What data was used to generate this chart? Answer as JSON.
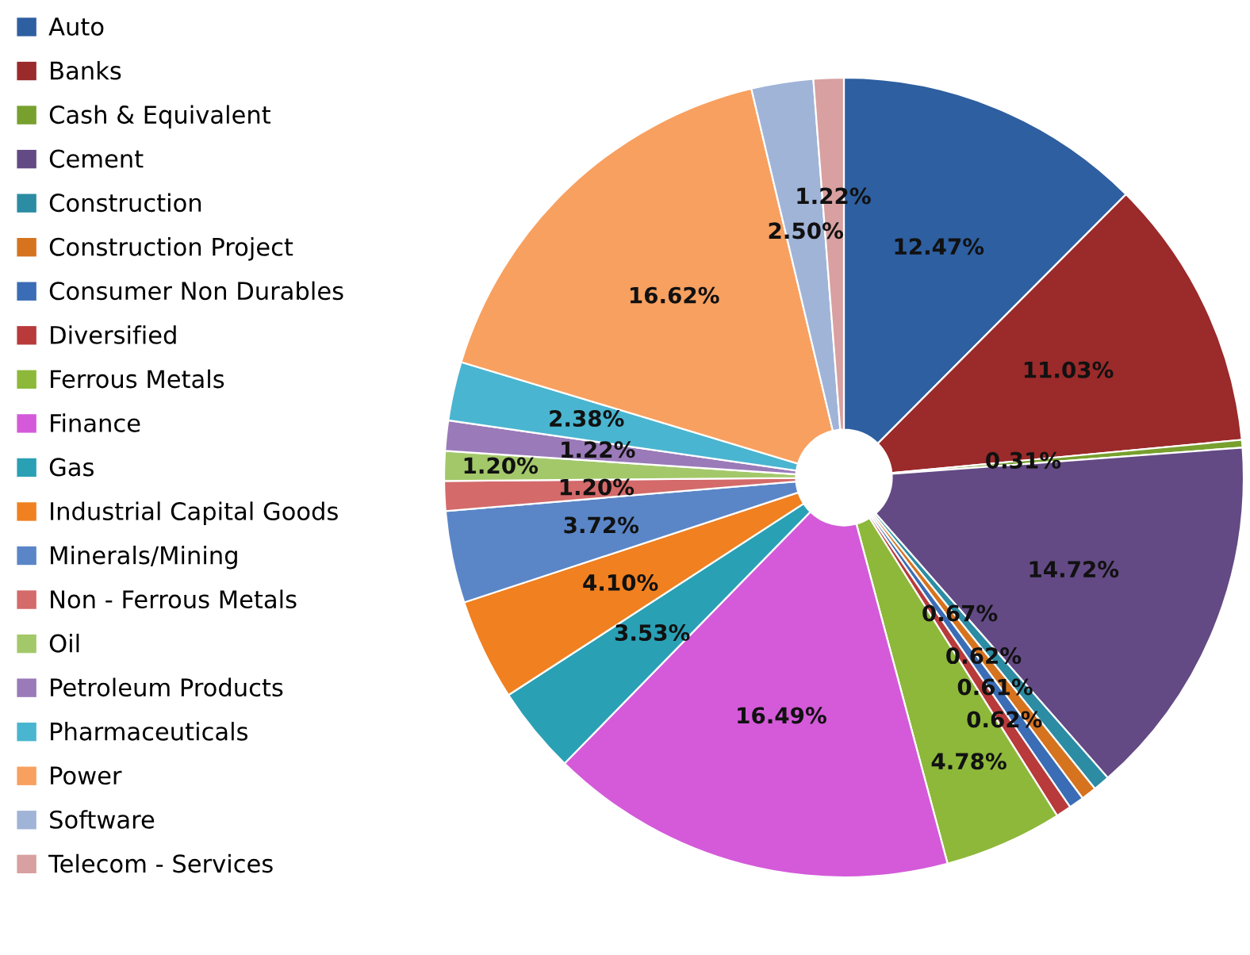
{
  "chart_data": {
    "type": "pie",
    "categories": [
      "Auto",
      "Banks",
      "Cash & Equivalent",
      "Cement",
      "Construction",
      "Construction Project",
      "Consumer Non Durables",
      "Diversified",
      "Ferrous Metals",
      "Finance",
      "Gas",
      "Industrial Capital Goods",
      "Minerals/Mining",
      "Non - Ferrous Metals",
      "Oil",
      "Petroleum Products",
      "Pharmaceuticals",
      "Power",
      "Software",
      "Telecom - Services"
    ],
    "values": [
      12.47,
      11.03,
      0.31,
      14.72,
      0.67,
      0.62,
      0.61,
      0.62,
      4.78,
      16.49,
      3.53,
      4.1,
      3.72,
      1.2,
      1.2,
      1.22,
      2.38,
      16.62,
      2.5,
      1.22
    ],
    "value_labels": [
      "12.47%",
      "11.03%",
      "0.31%",
      "14.72%",
      "0.67%",
      "0.62%",
      "0.61%",
      "0.62%",
      "4.78%",
      "16.49%",
      "3.53%",
      "4.10%",
      "3.72%",
      "1.20%",
      "1.20%",
      "1.22%",
      "2.38%",
      "16.62%",
      "2.50%",
      "1.22%"
    ],
    "colors": [
      "#2e5fa0",
      "#9b2a2a",
      "#77a02e",
      "#634a84",
      "#2b8ca3",
      "#d6731f",
      "#3a6db5",
      "#b83a3a",
      "#8db83a",
      "#d45ad9",
      "#2aa0b5",
      "#f08020",
      "#5a86c8",
      "#d46a6a",
      "#a3c86a",
      "#9a7ab8",
      "#4ab5d0",
      "#f8a060",
      "#a0b4d8",
      "#d8a0a0"
    ],
    "legend": "left"
  }
}
